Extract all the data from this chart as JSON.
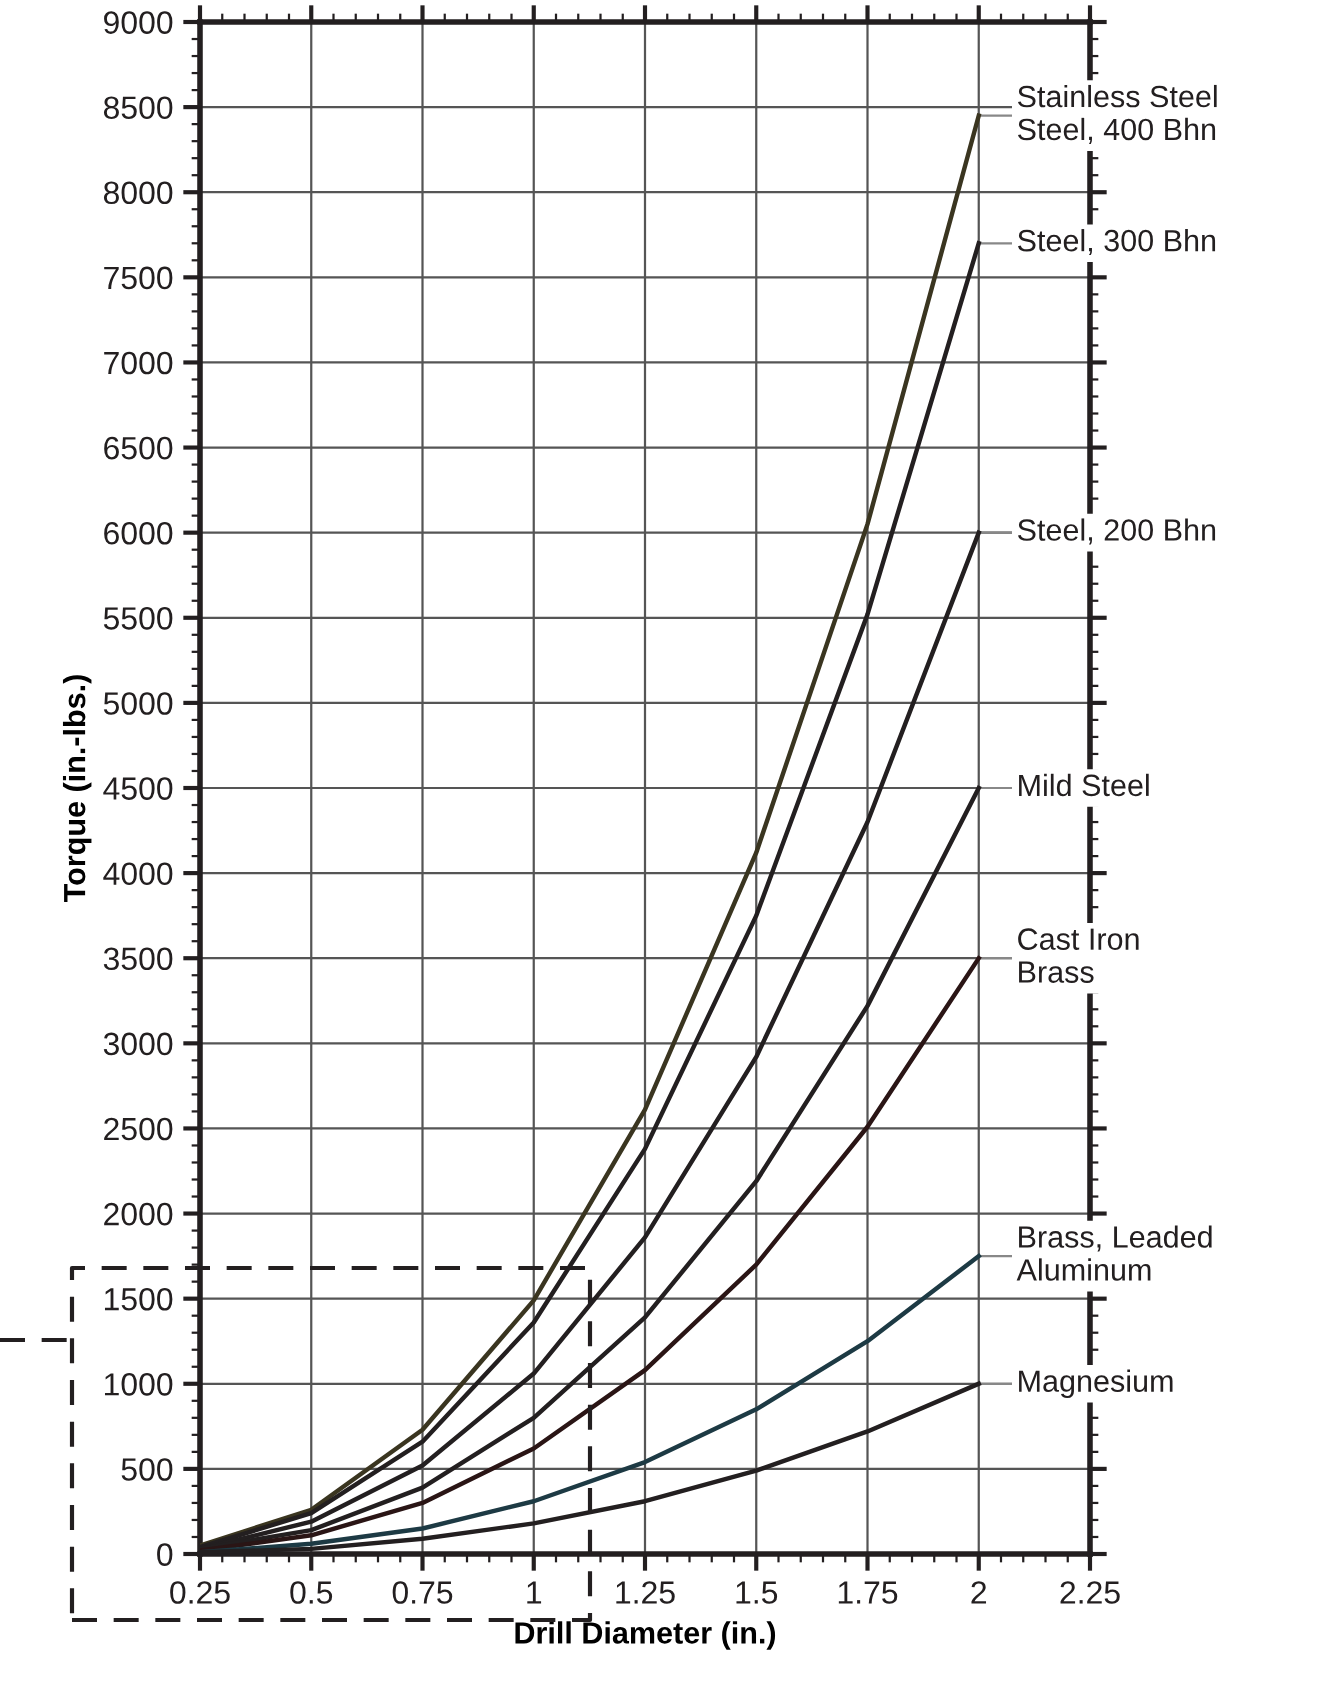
{
  "chart_data": {
    "type": "line",
    "xlabel": "Drill Diameter (in.)",
    "ylabel": "Torque (in.-lbs.)",
    "x": [
      0.25,
      0.5,
      0.75,
      1,
      1.25,
      1.5,
      1.75,
      2
    ],
    "series": [
      {
        "name": "Stainless Steel\nSteel, 400 Bhn",
        "color": "#3a3520",
        "values": [
          50,
          260,
          730,
          1490,
          2610,
          4120,
          6050,
          8450
        ]
      },
      {
        "name": "Steel, 300 Bhn",
        "color": "#231f20",
        "values": [
          40,
          240,
          660,
          1360,
          2380,
          3750,
          5520,
          7700
        ]
      },
      {
        "name": "Steel, 200 Bhn",
        "color": "#231f20",
        "values": [
          30,
          190,
          520,
          1060,
          1860,
          2920,
          4300,
          6000
        ]
      },
      {
        "name": "Mild Steel",
        "color": "#231f20",
        "values": [
          30,
          140,
          390,
          800,
          1390,
          2190,
          3220,
          4500
        ]
      },
      {
        "name": "Cast Iron\nBrass",
        "color": "#2a1515",
        "values": [
          20,
          110,
          300,
          620,
          1080,
          1700,
          2510,
          3500
        ]
      },
      {
        "name": "Brass, Leaded\nAluminum",
        "color": "#1d3a44",
        "values": [
          10,
          60,
          150,
          310,
          540,
          850,
          1250,
          1750
        ]
      },
      {
        "name": "Magnesium",
        "color": "#231f20",
        "values": [
          10,
          30,
          90,
          180,
          310,
          490,
          720,
          1000
        ]
      }
    ],
    "xlim": [
      0.25,
      2.25
    ],
    "xticks": [
      0.25,
      0.5,
      0.75,
      1,
      1.25,
      1.5,
      1.75,
      2,
      2.25
    ],
    "ylim": [
      0,
      9000
    ],
    "yticks": [
      0,
      500,
      1000,
      1500,
      2000,
      2500,
      3000,
      3500,
      4000,
      4500,
      5000,
      5500,
      6000,
      6500,
      7000,
      7500,
      8000,
      8500,
      9000
    ],
    "grid": true,
    "marker": "none",
    "line_style": "solid",
    "legend": false
  }
}
